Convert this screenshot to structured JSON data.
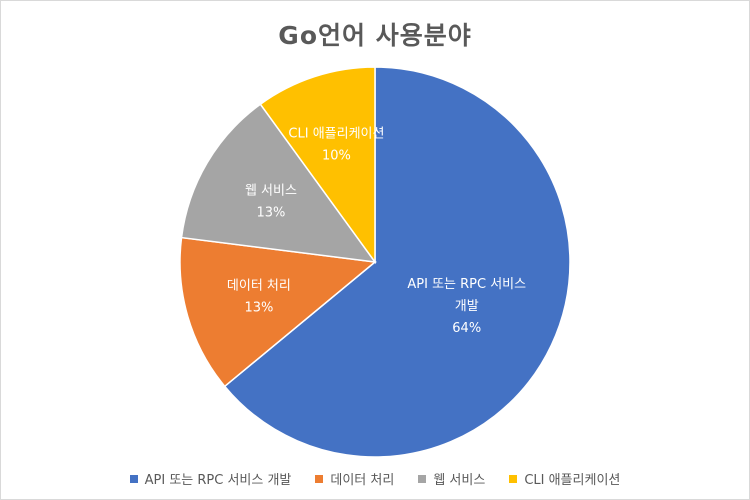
{
  "chart_data": {
    "type": "pie",
    "title": "Go언어 사용분야",
    "start_angle_deg": 0,
    "direction": "clockwise",
    "slices": [
      {
        "label": "API 또는 RPC 서비스 개발",
        "value": 64,
        "value_label": "64%",
        "color": "#4472C4",
        "label_lines": [
          "API 또는 RPC 서비스",
          "개발"
        ]
      },
      {
        "label": "데이터 처리",
        "value": 13,
        "value_label": "13%",
        "color": "#ED7D31",
        "label_lines": [
          "데이터 처리"
        ]
      },
      {
        "label": "웹 서비스",
        "value": 13,
        "value_label": "13%",
        "color": "#A5A5A5",
        "label_lines": [
          "웹 서비스"
        ]
      },
      {
        "label": "CLI 애플리케이션",
        "value": 10,
        "value_label": "10%",
        "color": "#FFC000",
        "label_lines": [
          "CLI 애플리케이션"
        ]
      }
    ],
    "legend_position": "bottom"
  }
}
